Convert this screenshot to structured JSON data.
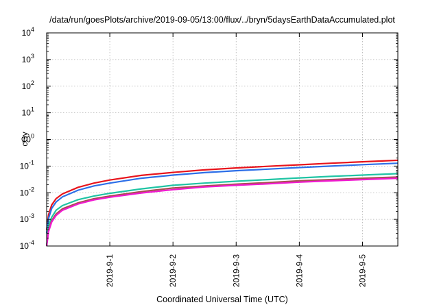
{
  "chart_data": {
    "type": "line",
    "title": "/data/run/goesPlots/archive/2019-09-05/13:00/flux/../bryn/5daysEarthDataAccumulated.plot",
    "xlabel": "Coordinated Universal Time (UTC)",
    "ylabel": "cGy",
    "x_unit": "days since 2019-08-31 00:00 UTC",
    "xlim": [
      0,
      5.56
    ],
    "ylim": [
      0.0001,
      10000
    ],
    "yscale": "log",
    "grid": true,
    "x_ticks": [
      {
        "x": 1,
        "label": "2019-9-1"
      },
      {
        "x": 2,
        "label": "2019-9-2"
      },
      {
        "x": 3,
        "label": "2019-9-3"
      },
      {
        "x": 4,
        "label": "2019-9-4"
      },
      {
        "x": 5,
        "label": "2019-9-5"
      }
    ],
    "y_ticks": [
      {
        "v": 0.0001,
        "base": "10",
        "exp": "-4"
      },
      {
        "v": 0.001,
        "base": "10",
        "exp": "-3"
      },
      {
        "v": 0.01,
        "base": "10",
        "exp": "-2"
      },
      {
        "v": 0.1,
        "base": "10",
        "exp": "-1"
      },
      {
        "v": 1,
        "base": "10",
        "exp": "0"
      },
      {
        "v": 10,
        "base": "10",
        "exp": "1"
      },
      {
        "v": 100,
        "base": "10",
        "exp": "2"
      },
      {
        "v": 1000,
        "base": "10",
        "exp": "3"
      },
      {
        "v": 10000,
        "base": "10",
        "exp": "4"
      }
    ],
    "x": [
      0,
      0.03,
      0.08,
      0.15,
      0.25,
      0.5,
      0.75,
      1.0,
      1.5,
      2.0,
      2.5,
      3.0,
      3.5,
      4.0,
      4.5,
      5.0,
      5.56
    ],
    "series": [
      {
        "color": "#e8141c",
        "values": [
          0.0004,
          0.0015,
          0.0035,
          0.006,
          0.009,
          0.016,
          0.023,
          0.03,
          0.045,
          0.058,
          0.072,
          0.085,
          0.098,
          0.112,
          0.128,
          0.145,
          0.165
        ]
      },
      {
        "color": "#2d6fe8",
        "values": [
          0.0003,
          0.0011,
          0.0026,
          0.0045,
          0.007,
          0.0125,
          0.018,
          0.023,
          0.035,
          0.046,
          0.057,
          0.067,
          0.077,
          0.088,
          0.1,
          0.113,
          0.128
        ]
      },
      {
        "color": "#1fc4a4",
        "values": [
          0.0001,
          0.0006,
          0.0012,
          0.0022,
          0.0033,
          0.0055,
          0.0075,
          0.0095,
          0.014,
          0.019,
          0.023,
          0.027,
          0.031,
          0.036,
          0.041,
          0.046,
          0.052
        ]
      },
      {
        "color": "#a85050",
        "values": [
          0.0001,
          0.0004,
          0.0009,
          0.0016,
          0.0025,
          0.0042,
          0.006,
          0.0075,
          0.011,
          0.015,
          0.018,
          0.021,
          0.024,
          0.028,
          0.031,
          0.035,
          0.039
        ]
      },
      {
        "color": "#f01ad0",
        "values": [
          0.0001,
          0.00035,
          0.0008,
          0.0014,
          0.0022,
          0.0038,
          0.0054,
          0.0068,
          0.0098,
          0.013,
          0.0165,
          0.019,
          0.0215,
          0.025,
          0.028,
          0.031,
          0.035
        ]
      }
    ]
  }
}
